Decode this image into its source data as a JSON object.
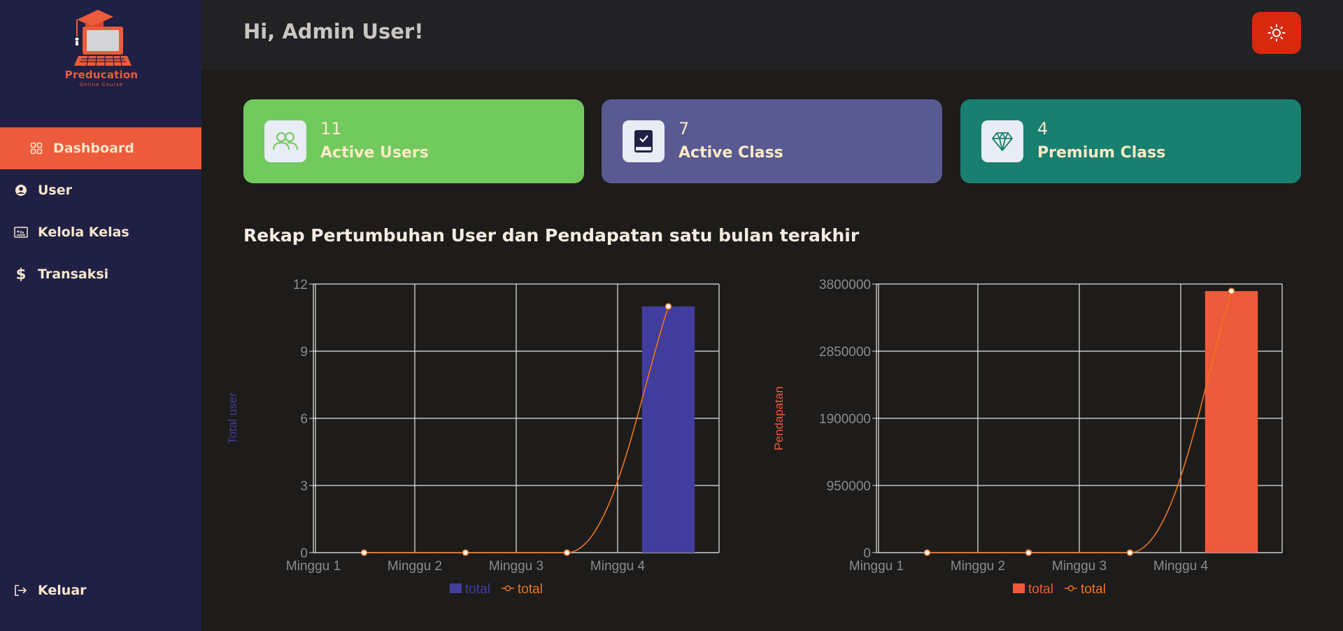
{
  "app": {
    "name": "Preducation",
    "tagline": "Online Course"
  },
  "sidebar": {
    "items": [
      {
        "label": "Dashboard",
        "icon": "grid-icon",
        "active": true
      },
      {
        "label": "User",
        "icon": "user-circle-icon",
        "active": false
      },
      {
        "label": "Kelola Kelas",
        "icon": "presentation-icon",
        "active": false
      },
      {
        "label": "Transaksi",
        "icon": "dollar-icon",
        "active": false
      }
    ],
    "logout_label": "Keluar"
  },
  "header": {
    "greeting": "Hi, Admin User!",
    "theme_icon": "sun-icon"
  },
  "cards": [
    {
      "value": "11",
      "label": "Active Users",
      "color": "#72c95d",
      "icon": "users-icon"
    },
    {
      "value": "7",
      "label": "Active Class",
      "color": "#585a91",
      "icon": "book-check-icon"
    },
    {
      "value": "4",
      "label": "Premium Class",
      "color": "#197f70",
      "icon": "diamond-icon"
    }
  ],
  "section_title": "Rekap Pertumbuhan User dan Pendapatan satu bulan terakhir",
  "chart_data": [
    {
      "type": "bar",
      "categories": [
        "Minggu 1",
        "Minggu 2",
        "Minggu 3",
        "Minggu 4"
      ],
      "series": [
        {
          "name": "total",
          "type": "bar",
          "color": "#423d9c",
          "values": [
            0,
            0,
            0,
            11
          ]
        },
        {
          "name": "total",
          "type": "line",
          "color": "#f1741d",
          "values": [
            0,
            0,
            0,
            11
          ]
        }
      ],
      "ylabel": "Total user",
      "ylabel_color": "#423d9c",
      "ylim": [
        0,
        12
      ],
      "yticks": [
        "0",
        "3",
        "6",
        "9",
        "12"
      ],
      "grid": true,
      "legend": "bottom"
    },
    {
      "type": "bar",
      "categories": [
        "Minggu 1",
        "Minggu 2",
        "Minggu 3",
        "Minggu 4"
      ],
      "series": [
        {
          "name": "total",
          "type": "bar",
          "color": "#ec5b3b",
          "values": [
            0,
            0,
            0,
            3700000
          ]
        },
        {
          "name": "total",
          "type": "line",
          "color": "#f1741d",
          "values": [
            0,
            0,
            0,
            3700000
          ]
        }
      ],
      "ylabel": "Pendapatan",
      "ylabel_color": "#ec5b3b",
      "ylim": [
        0,
        3800000
      ],
      "yticks": [
        "0",
        "950000",
        "1900000",
        "2850000",
        "3800000"
      ],
      "grid": true,
      "legend": "bottom"
    }
  ]
}
